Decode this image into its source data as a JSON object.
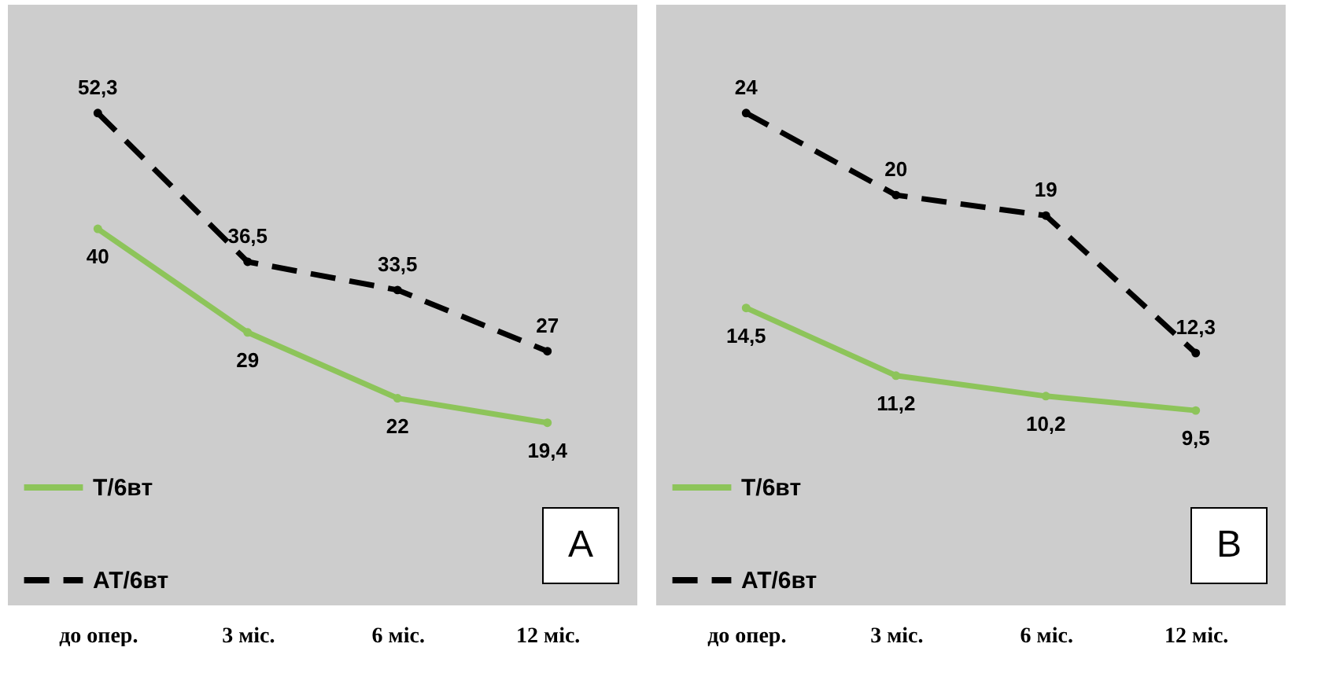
{
  "chart_data": [
    {
      "type": "line",
      "categories": [
        "до опер.",
        "3 міс.",
        "6 міс.",
        "12 міс."
      ],
      "tick_labels": "x",
      "marker": "circle",
      "legend": "bottom left",
      "annotations": [
        "A"
      ],
      "series": [
        {
          "name": "Т/6вт",
          "color": "#8dc45a",
          "line_style": "solid",
          "values": [
            40,
            29,
            22,
            19.4
          ],
          "value_labels": [
            "40",
            "29",
            "22",
            "19,4"
          ]
        },
        {
          "name": "АТ/6вт",
          "color": "#000000",
          "line_style": "dashed",
          "values": [
            52.3,
            36.5,
            33.5,
            27
          ],
          "value_labels": [
            "52,3",
            "36,5",
            "33,5",
            "27"
          ]
        }
      ]
    },
    {
      "type": "line",
      "categories": [
        "до опер.",
        "3 міс.",
        "6 міс.",
        "12 міс."
      ],
      "tick_labels": "x",
      "marker": "circle",
      "legend": "bottom left",
      "annotations": [
        "B"
      ],
      "series": [
        {
          "name": "Т/6вт",
          "color": "#8dc45a",
          "line_style": "solid",
          "values": [
            14.5,
            11.2,
            10.2,
            9.5
          ],
          "value_labels": [
            "14,5",
            "11,2",
            "10,2",
            "9,5"
          ]
        },
        {
          "name": "АТ/6вт",
          "color": "#000000",
          "line_style": "dashed",
          "values": [
            24,
            20,
            19,
            12.3
          ],
          "value_labels": [
            "24",
            "20",
            "19",
            "12,3"
          ]
        }
      ]
    }
  ]
}
